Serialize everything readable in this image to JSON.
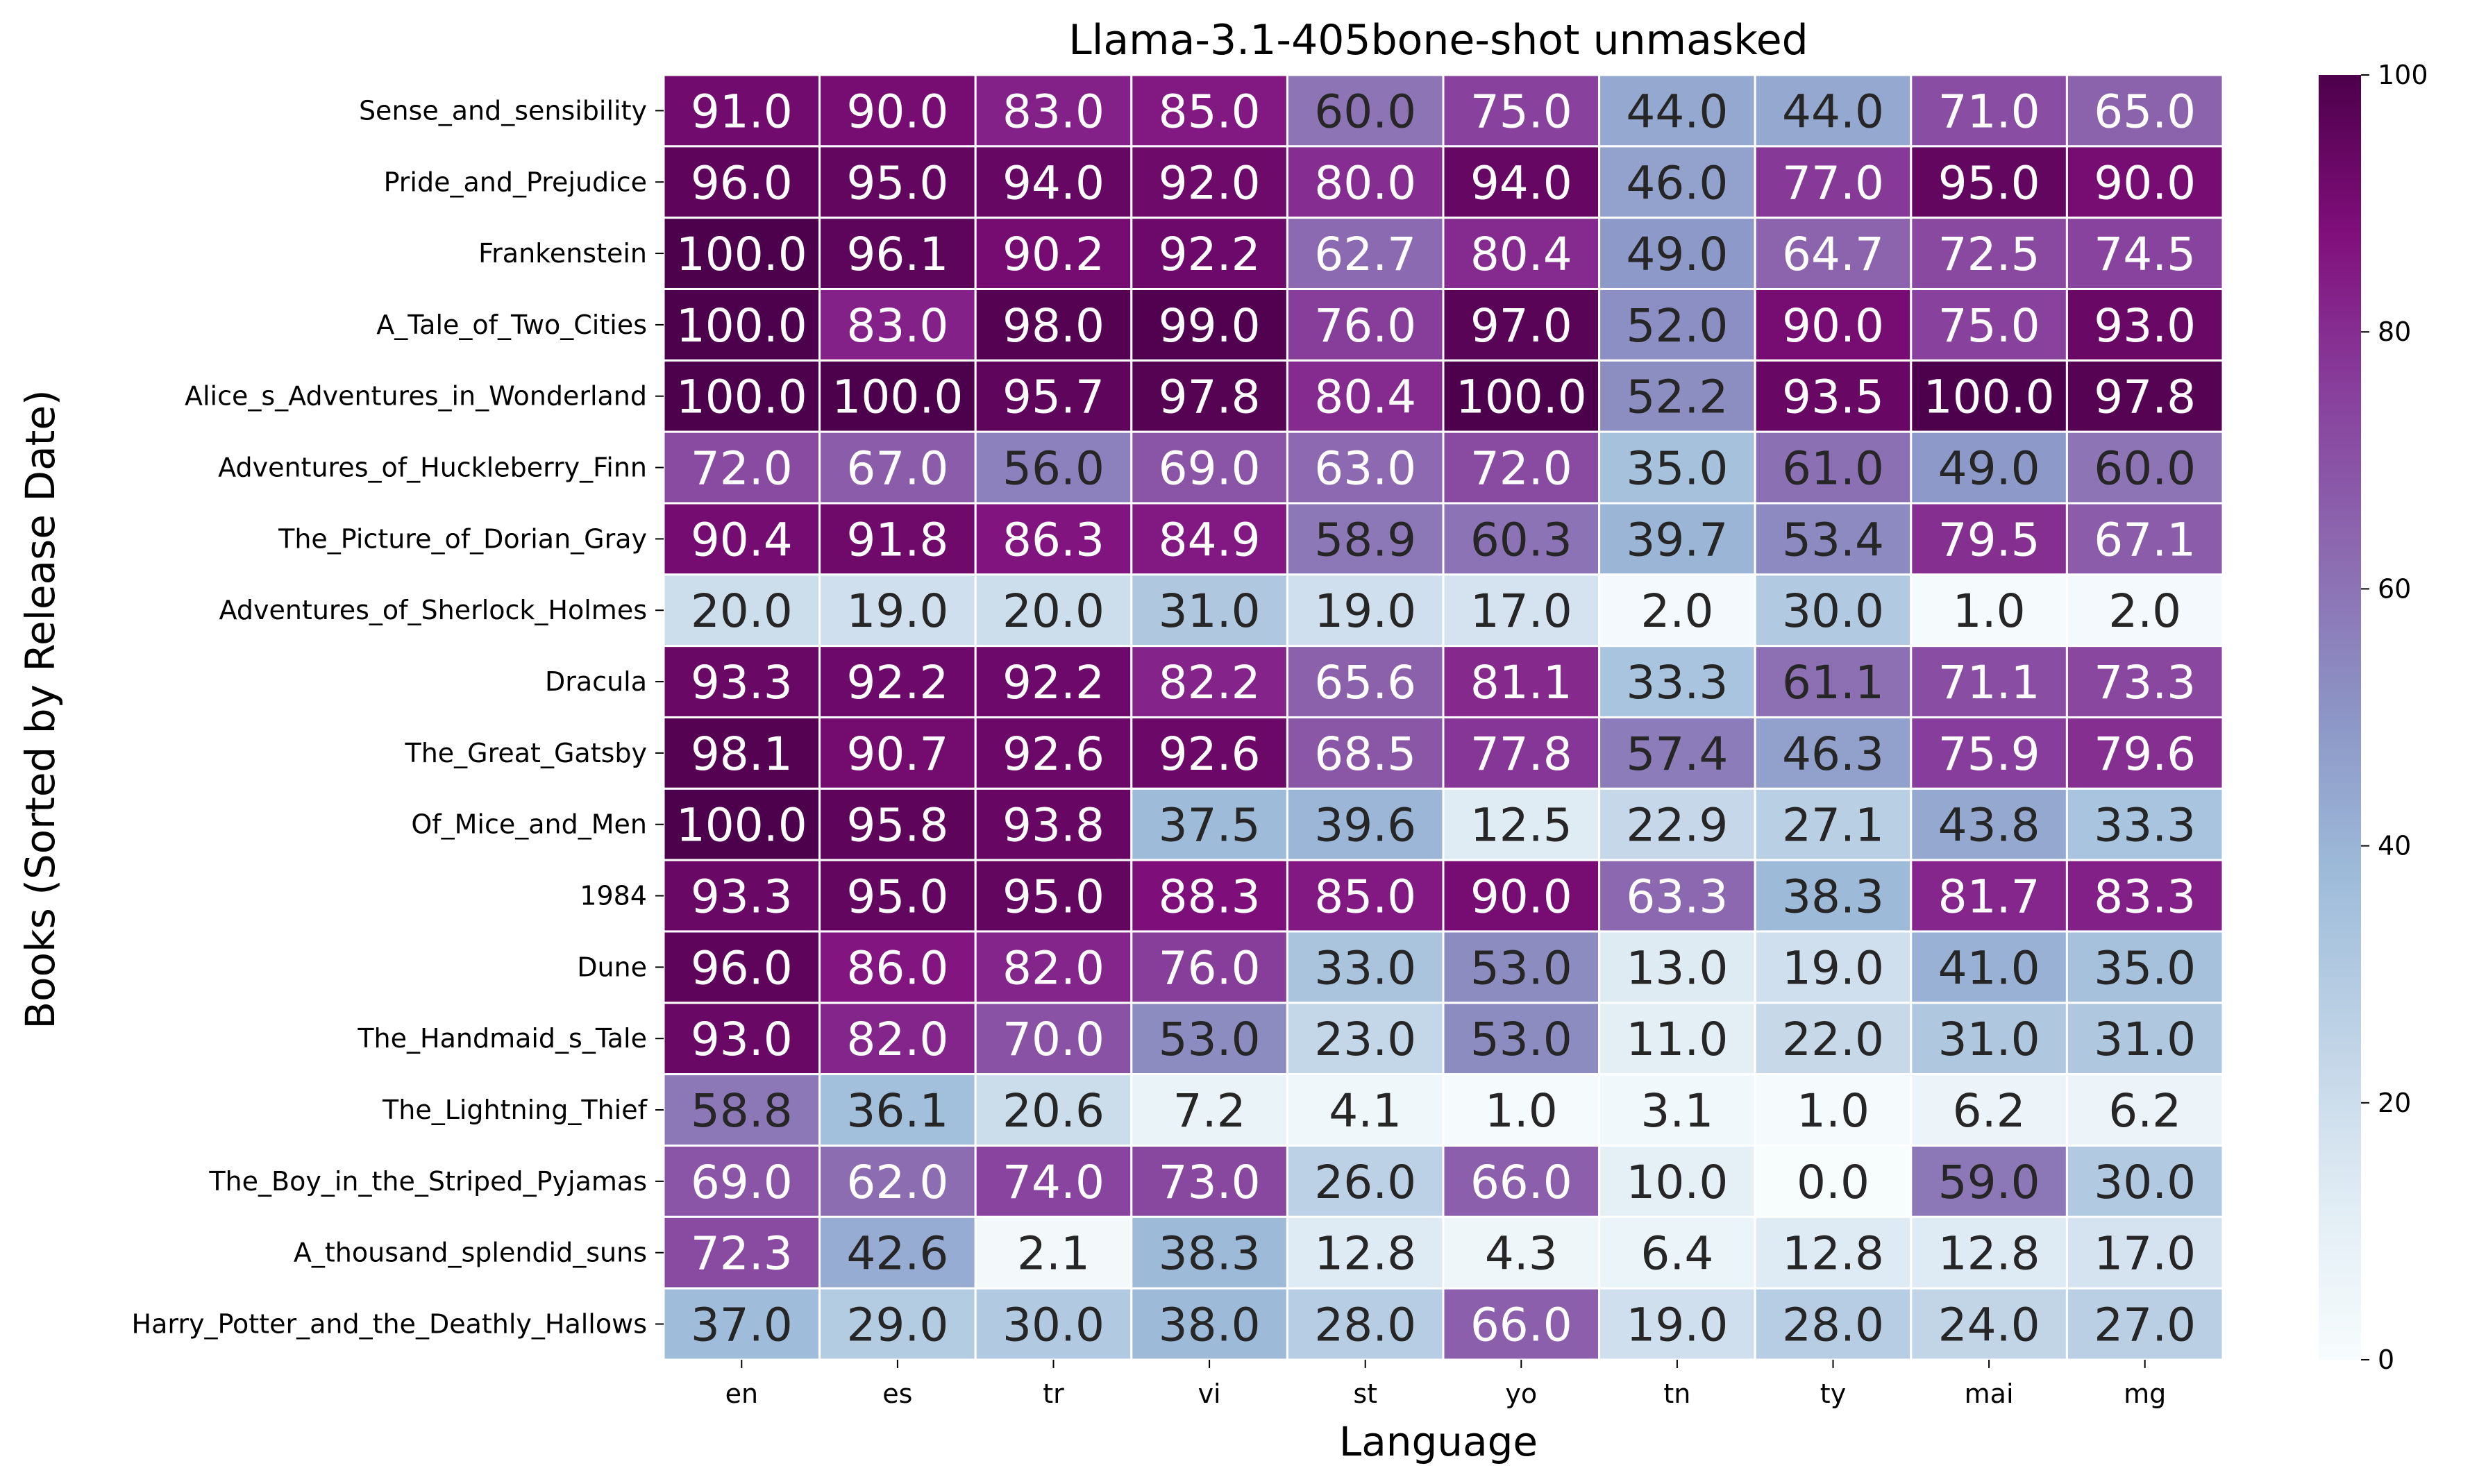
{
  "chart_data": {
    "type": "heatmap",
    "title": "Llama-3.1-405bone-shot unmasked",
    "xlabel": "Language",
    "ylabel": "Books (Sorted by Release Date)",
    "columns": [
      "en",
      "es",
      "tr",
      "vi",
      "st",
      "yo",
      "tn",
      "ty",
      "mai",
      "mg"
    ],
    "rows": [
      "Sense_and_sensibility",
      "Pride_and_Prejudice",
      "Frankenstein",
      "A_Tale_of_Two_Cities",
      "Alice_s_Adventures_in_Wonderland",
      "Adventures_of_Huckleberry_Finn",
      "The_Picture_of_Dorian_Gray",
      "Adventures_of_Sherlock_Holmes",
      "Dracula",
      "The_Great_Gatsby",
      "Of_Mice_and_Men",
      "1984",
      "Dune",
      "The_Handmaid_s_Tale",
      "The_Lightning_Thief",
      "The_Boy_in_the_Striped_Pyjamas",
      "A_thousand_splendid_suns",
      "Harry_Potter_and_the_Deathly_Hallows"
    ],
    "values": [
      [
        91.0,
        90.0,
        83.0,
        85.0,
        60.0,
        75.0,
        44.0,
        44.0,
        71.0,
        65.0
      ],
      [
        96.0,
        95.0,
        94.0,
        92.0,
        80.0,
        94.0,
        46.0,
        77.0,
        95.0,
        90.0
      ],
      [
        100.0,
        96.1,
        90.2,
        92.2,
        62.7,
        80.4,
        49.0,
        64.7,
        72.5,
        74.5
      ],
      [
        100.0,
        83.0,
        98.0,
        99.0,
        76.0,
        97.0,
        52.0,
        90.0,
        75.0,
        93.0
      ],
      [
        100.0,
        100.0,
        95.7,
        97.8,
        80.4,
        100.0,
        52.2,
        93.5,
        100.0,
        97.8
      ],
      [
        72.0,
        67.0,
        56.0,
        69.0,
        63.0,
        72.0,
        35.0,
        61.0,
        49.0,
        60.0
      ],
      [
        90.4,
        91.8,
        86.3,
        84.9,
        58.9,
        60.3,
        39.7,
        53.4,
        79.5,
        67.1
      ],
      [
        20.0,
        19.0,
        20.0,
        31.0,
        19.0,
        17.0,
        2.0,
        30.0,
        1.0,
        2.0
      ],
      [
        93.3,
        92.2,
        92.2,
        82.2,
        65.6,
        81.1,
        33.3,
        61.1,
        71.1,
        73.3
      ],
      [
        98.1,
        90.7,
        92.6,
        92.6,
        68.5,
        77.8,
        57.4,
        46.3,
        75.9,
        79.6
      ],
      [
        100.0,
        95.8,
        93.8,
        37.5,
        39.6,
        12.5,
        22.9,
        27.1,
        43.8,
        33.3
      ],
      [
        93.3,
        95.0,
        95.0,
        88.3,
        85.0,
        90.0,
        63.3,
        38.3,
        81.7,
        83.3
      ],
      [
        96.0,
        86.0,
        82.0,
        76.0,
        33.0,
        53.0,
        13.0,
        19.0,
        41.0,
        35.0
      ],
      [
        93.0,
        82.0,
        70.0,
        53.0,
        23.0,
        53.0,
        11.0,
        22.0,
        31.0,
        31.0
      ],
      [
        58.8,
        36.1,
        20.6,
        7.2,
        4.1,
        1.0,
        3.1,
        1.0,
        6.2,
        6.2
      ],
      [
        69.0,
        62.0,
        74.0,
        73.0,
        26.0,
        66.0,
        10.0,
        0.0,
        59.0,
        30.0
      ],
      [
        72.3,
        42.6,
        2.1,
        38.3,
        12.8,
        4.3,
        6.4,
        12.8,
        12.8,
        17.0
      ],
      [
        37.0,
        29.0,
        30.0,
        38.0,
        28.0,
        66.0,
        19.0,
        28.0,
        24.0,
        27.0
      ]
    ],
    "value_format": "one decimal",
    "vmin": 0,
    "vmax": 100,
    "colormap": "BuPu",
    "colorbar_ticks": [
      0,
      20,
      40,
      60,
      80,
      100
    ],
    "annotations": true,
    "grid": false,
    "colors": {
      "low": "#f7fcfd",
      "high": "#4d004b",
      "cell_border": "#ffffff",
      "text_dark": "#262626",
      "text_light": "#ffffff"
    }
  }
}
